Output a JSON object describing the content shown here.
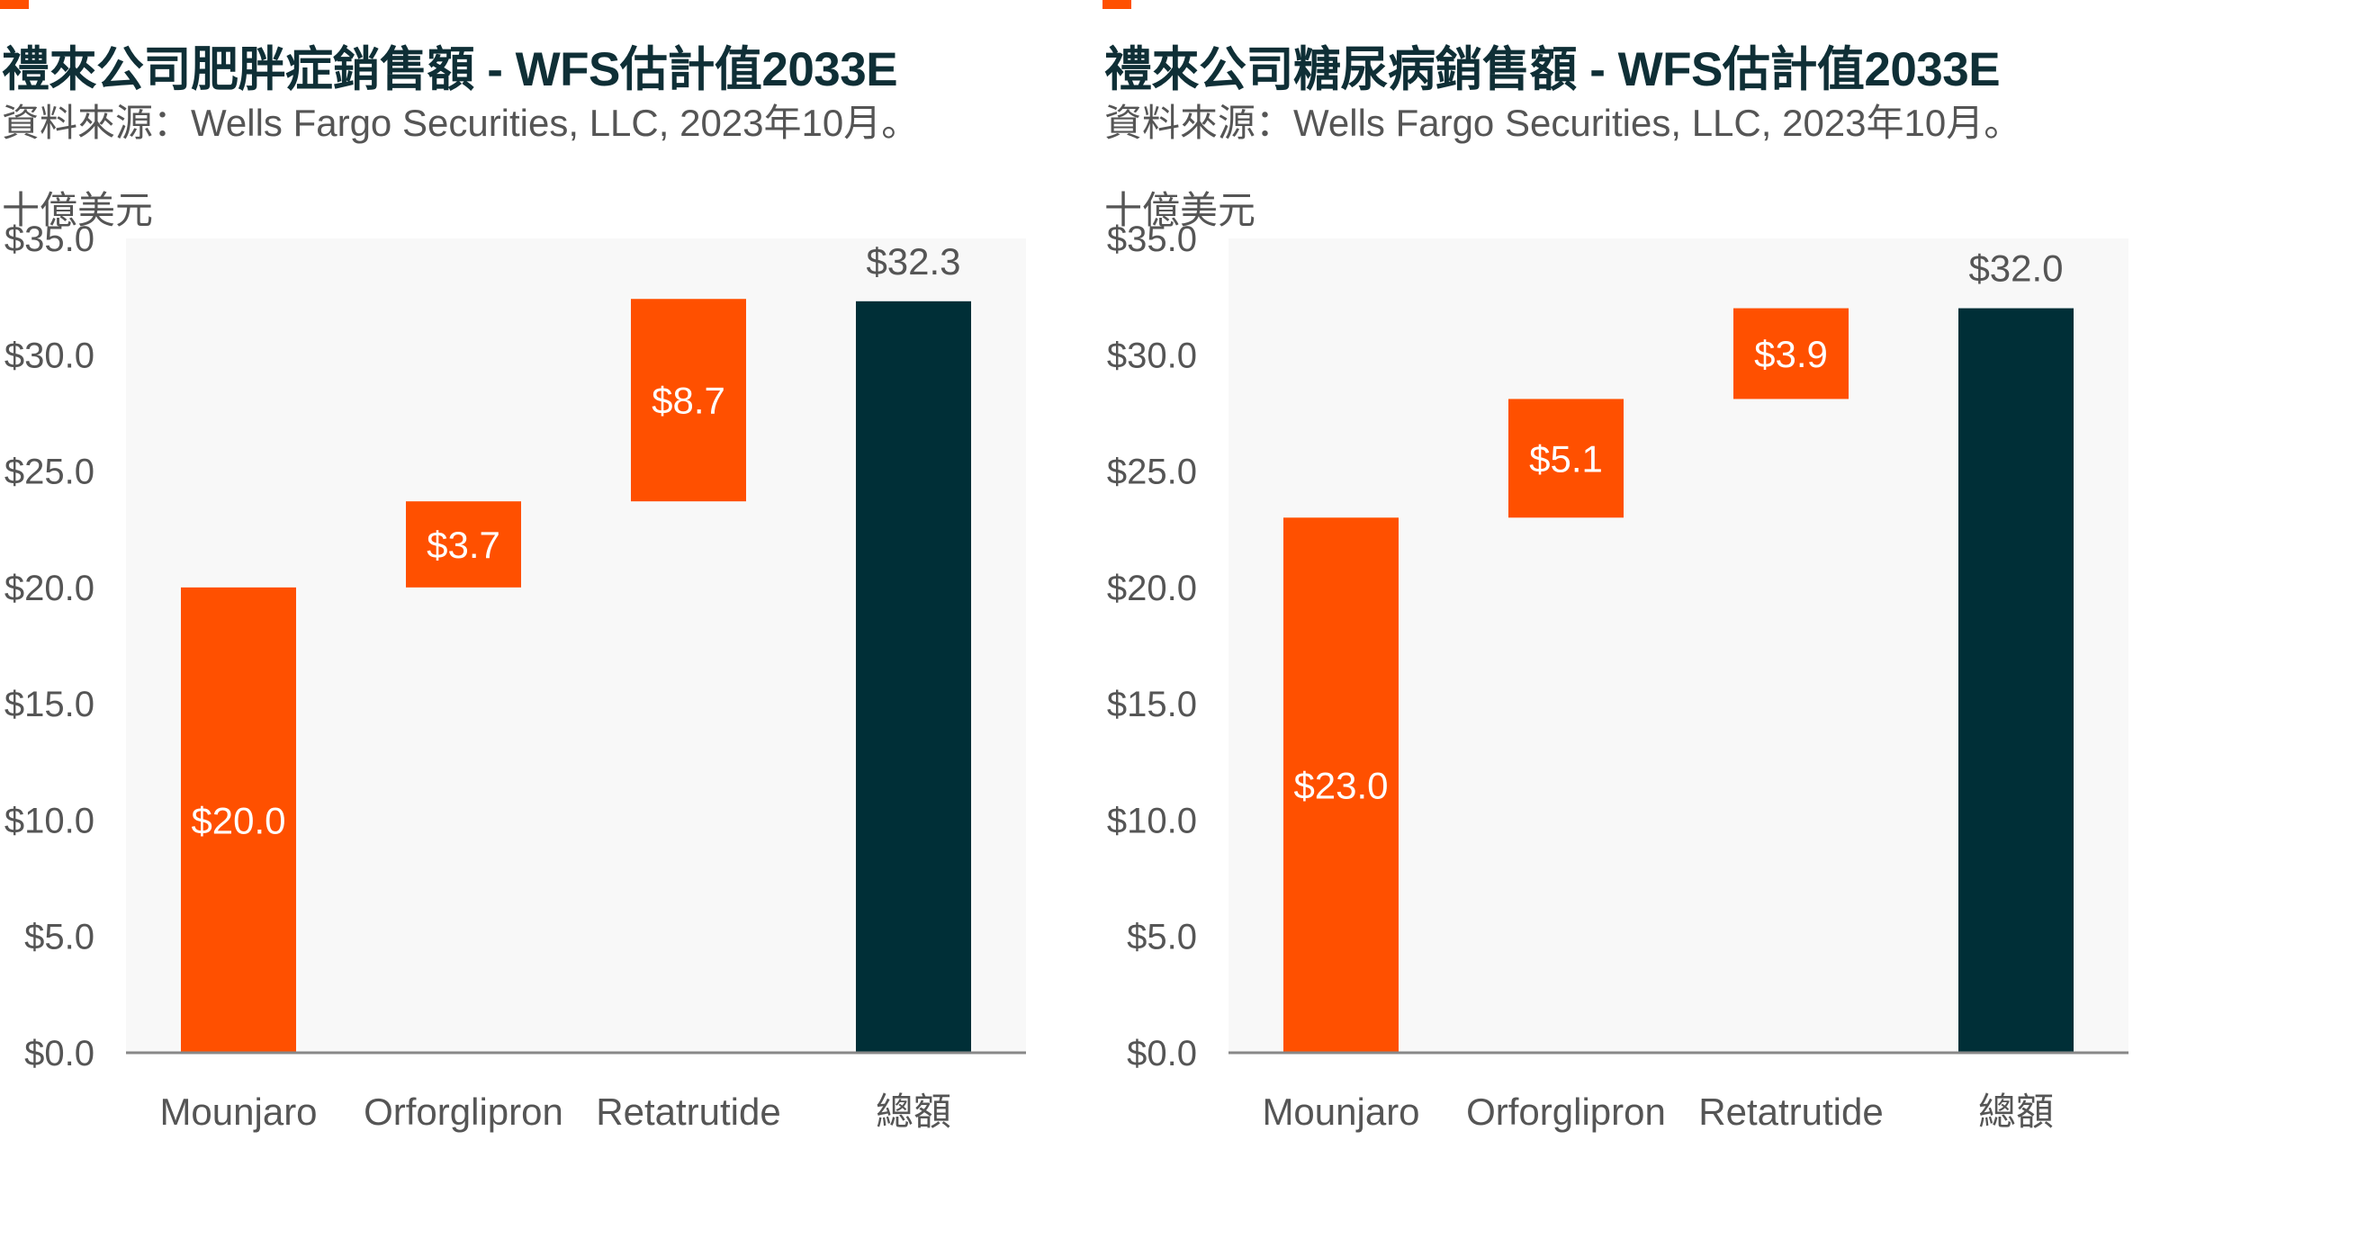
{
  "colors": {
    "accent": "#ff5000",
    "total": "#002f37",
    "plot_bg": "#f8f8f8",
    "axis": "#888888",
    "text": "#555555"
  },
  "chart_data": [
    {
      "type": "bar",
      "title": "禮來公司肥胖症銷售額 - WFS估計值2033E",
      "subtitle": "資料來源：Wells Fargo Securities, LLC, 2023年10月。",
      "ylabel": "十億美元",
      "xlabel": "",
      "ylim": [
        0,
        35
      ],
      "ytick_labels": [
        "$0.0",
        "$5.0",
        "$10.0",
        "$15.0",
        "$20.0",
        "$25.0",
        "$30.0",
        "$35.0"
      ],
      "grid": false,
      "categories": [
        "Mounjaro",
        "Orforglipron",
        "Retatrutide",
        "總額"
      ],
      "bars": [
        {
          "category": "Mounjaro",
          "base": 0,
          "value": 20.0,
          "label": "$20.0",
          "kind": "increment"
        },
        {
          "category": "Orforglipron",
          "base": 20.0,
          "value": 3.7,
          "label": "$3.7",
          "kind": "increment"
        },
        {
          "category": "Retatrutide",
          "base": 23.7,
          "value": 8.7,
          "label": "$8.7",
          "kind": "increment"
        },
        {
          "category": "總額",
          "base": 0,
          "value": 32.3,
          "label": "$32.3",
          "kind": "total"
        }
      ]
    },
    {
      "type": "bar",
      "title": "禮來公司糖尿病銷售額 - WFS估計值2033E",
      "subtitle": "資料來源：Wells Fargo Securities, LLC, 2023年10月。",
      "ylabel": "十億美元",
      "xlabel": "",
      "ylim": [
        0,
        35
      ],
      "ytick_labels": [
        "$0.0",
        "$5.0",
        "$10.0",
        "$15.0",
        "$20.0",
        "$25.0",
        "$30.0",
        "$35.0"
      ],
      "grid": false,
      "categories": [
        "Mounjaro",
        "Orforglipron",
        "Retatrutide",
        "總額"
      ],
      "bars": [
        {
          "category": "Mounjaro",
          "base": 0,
          "value": 23.0,
          "label": "$23.0",
          "kind": "increment"
        },
        {
          "category": "Orforglipron",
          "base": 23.0,
          "value": 5.1,
          "label": "$5.1",
          "kind": "increment"
        },
        {
          "category": "Retatrutide",
          "base": 28.1,
          "value": 3.9,
          "label": "$3.9",
          "kind": "increment"
        },
        {
          "category": "總額",
          "base": 0,
          "value": 32.0,
          "label": "$32.0",
          "kind": "total"
        }
      ]
    }
  ]
}
